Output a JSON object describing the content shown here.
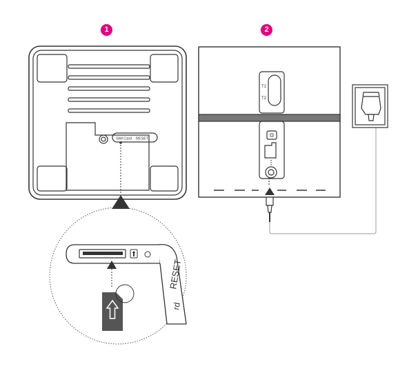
{
  "steps": [
    {
      "number": "1"
    },
    {
      "number": "2"
    }
  ],
  "router_bottom": {
    "sim_label": "SIM Card",
    "reset_label": "RESET"
  },
  "magnified": {
    "reset_label": "RESET",
    "partial_label": "rd"
  },
  "router_side": {
    "phone_port_1": "T1",
    "phone_port_2": "T2"
  },
  "colors": {
    "accent": "#e4007f",
    "line": "#333333",
    "sim_card": "#555555"
  }
}
